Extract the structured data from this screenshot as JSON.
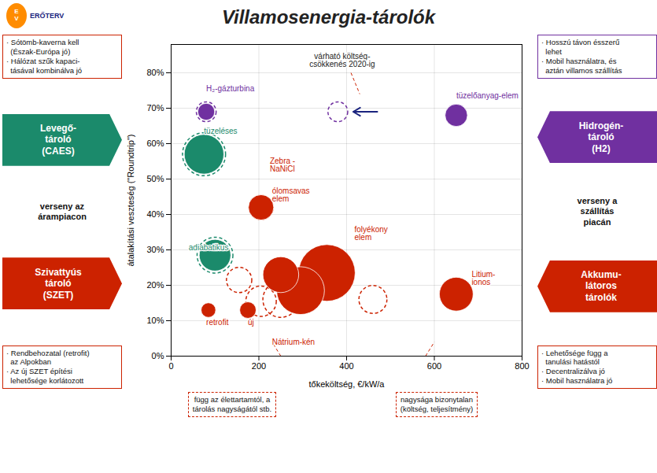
{
  "chart_data": {
    "type": "scatter",
    "title": "Villamosenergia-tárolók",
    "xlabel": "tőkeköltség, €/kW/a",
    "ylabel": "átalakítási veszteség (\"Roundtrip\")",
    "xlim": [
      0,
      800
    ],
    "ylim": [
      0,
      0.88
    ],
    "xticks": [
      0,
      200,
      400,
      600,
      800
    ],
    "yticks": [
      {
        "value": 0,
        "label": "0%"
      },
      {
        "value": 0.1,
        "label": "10%"
      },
      {
        "value": 0.2,
        "label": "20%"
      },
      {
        "value": 0.3,
        "label": "30%"
      },
      {
        "value": 0.4,
        "label": "40%"
      },
      {
        "value": 0.5,
        "label": "50%"
      },
      {
        "value": 0.6,
        "label": "60%"
      },
      {
        "value": 0.7,
        "label": "70%"
      },
      {
        "value": 0.8,
        "label": "80%"
      }
    ],
    "grid": true,
    "series": [
      {
        "marker": "circle",
        "line_style": "dashed",
        "x": [
          80,
          380,
          75,
          100,
          155,
          205,
          250,
          460
        ],
        "y": [
          0.69,
          0.69,
          0.57,
          0.285,
          0.215,
          0.155,
          0.16,
          0.16
        ],
        "sizes": [
          550,
          550,
          2600,
          1800,
          900,
          1300,
          1800,
          1100
        ],
        "colors": [
          "#7030A0",
          "#7030A0",
          "#1B8A6B",
          "#1B8A6B",
          "#CC2200",
          "#CC2200",
          "#CC2200",
          "#CC2200"
        ]
      },
      {
        "marker": "circle",
        "line_style": "solid",
        "x": [
          80,
          650,
          75,
          100,
          85,
          175,
          205,
          250,
          295,
          355,
          650
        ],
        "y": [
          0.69,
          0.68,
          0.57,
          0.285,
          0.13,
          0.13,
          0.42,
          0.23,
          0.185,
          0.235,
          0.175
        ],
        "sizes": [
          400,
          700,
          2200,
          1400,
          300,
          380,
          900,
          1800,
          3200,
          4500,
          1600
        ],
        "colors": [
          "#7030A0",
          "#7030A0",
          "#1B8A6B",
          "#1B8A6B",
          "#CC2200",
          "#CC2200",
          "#CC2200",
          "#CC2200",
          "#CC2200",
          "#CC2200",
          "#CC2200"
        ]
      }
    ],
    "annotations": [
      {
        "text": "H₂-gázturbina",
        "x": 80,
        "y": 0.755,
        "color": "#7030A0"
      },
      {
        "text": "tüzeléses",
        "x": 75,
        "y": 0.635,
        "color": "#1B8A6B"
      },
      {
        "text": "adiabatikus",
        "x": 40,
        "y": 0.305,
        "color": "#1B8A6B"
      },
      {
        "text": "tüzelőanyag-elem",
        "x": 650,
        "y": 0.735,
        "color": "#7030A0"
      },
      {
        "text": "retrofit",
        "x": 80,
        "y": 0.095,
        "color": "#CC2200"
      },
      {
        "text": "új",
        "x": 175,
        "y": 0.095,
        "color": "#CC2200"
      },
      {
        "text": "Nátrium-kén",
        "x": 230,
        "y": 0.04,
        "color": "#CC2200"
      },
      {
        "text": "Zebra -\nNaNiCl",
        "x": 225,
        "y": 0.54,
        "color": "#CC2200"
      },
      {
        "text": "ólomsavas\nelem",
        "x": 230,
        "y": 0.455,
        "color": "#CC2200"
      },
      {
        "text": "folyékony\nelem",
        "x": 418,
        "y": 0.345,
        "color": "#CC2200"
      },
      {
        "text": "Litium-\nionos",
        "x": 685,
        "y": 0.22,
        "color": "#CC2200"
      }
    ],
    "callout": {
      "text": "várható költség-\ncsökkenés 2020-ig",
      "x": 390,
      "y": 0.835,
      "color": "#222222"
    },
    "arrows": [
      {
        "x1": 470,
        "y1": 0.69,
        "x2": 415,
        "y2": 0.69,
        "color": "#1A237E"
      }
    ],
    "lines": [
      {
        "x1": 410,
        "y1": 0.8,
        "x2": 430,
        "y2": 0.74,
        "color": "#CC2200",
        "line_style": "dashed"
      },
      {
        "x1": 250,
        "y1": 0.0,
        "x2": 230,
        "y2": 0.04,
        "color": "#CC2200",
        "line_style": "dashed"
      },
      {
        "x1": 580,
        "y1": 0.0,
        "x2": 600,
        "y2": 0.04,
        "color": "#CC2200",
        "line_style": "dashed"
      }
    ],
    "logo": [
      "E\nV",
      "ERŐTERV"
    ],
    "left_panel": {
      "top_note": {
        "text": "· Sótömb-kaverna kell\n  (Észak-Európa jó)\n· Hálózat szűk kapaci-\n  tásával kombinálva jó",
        "color": "#CC2200"
      },
      "boxes": [
        {
          "text": "Levegő-\ntároló\n(CAES)",
          "color": "#1B8A6B",
          "direction": "right"
        },
        {
          "text": "Szivattyús\ntároló\n(SZET)",
          "color": "#CC2200",
          "direction": "right"
        }
      ],
      "text": "verseny az\nárampiacon",
      "bottom_note": {
        "text": "· Rendbehozatal (retrofit)\n  az Alpokban\n· Az új SZET építési\n  lehetősége korlátozott",
        "color": "#CC2200"
      }
    },
    "right_panel": {
      "top_note": {
        "text": "· Hosszú távon ésszerű\n  lehet\n· Mobil használatra, és\n  aztán villamos szállítás",
        "color": "#7030A0"
      },
      "boxes": [
        {
          "text": "Hidrogén-\ntároló\n(H2)",
          "color": "#7030A0",
          "direction": "left"
        },
        {
          "text": "Akkumu-\nlátoros\ntárolók",
          "color": "#CC2200",
          "direction": "left"
        }
      ],
      "text": "verseny a\nszállítás\npiacán",
      "bottom_note": {
        "text": "· Lehetősége függ a\n  tanulási hatástól\n· Decentralizálva jó\n· Mobil használatra jó",
        "color": "#CC2200"
      }
    },
    "bottom_notes": [
      {
        "text": "függ az élettartamtól, a\ntárolás nagyságától stb.",
        "color": "#CC2200"
      },
      {
        "text": "nagysága bizonytalan\n(költség, teljesítmény)",
        "color": "#CC2200"
      }
    ]
  }
}
